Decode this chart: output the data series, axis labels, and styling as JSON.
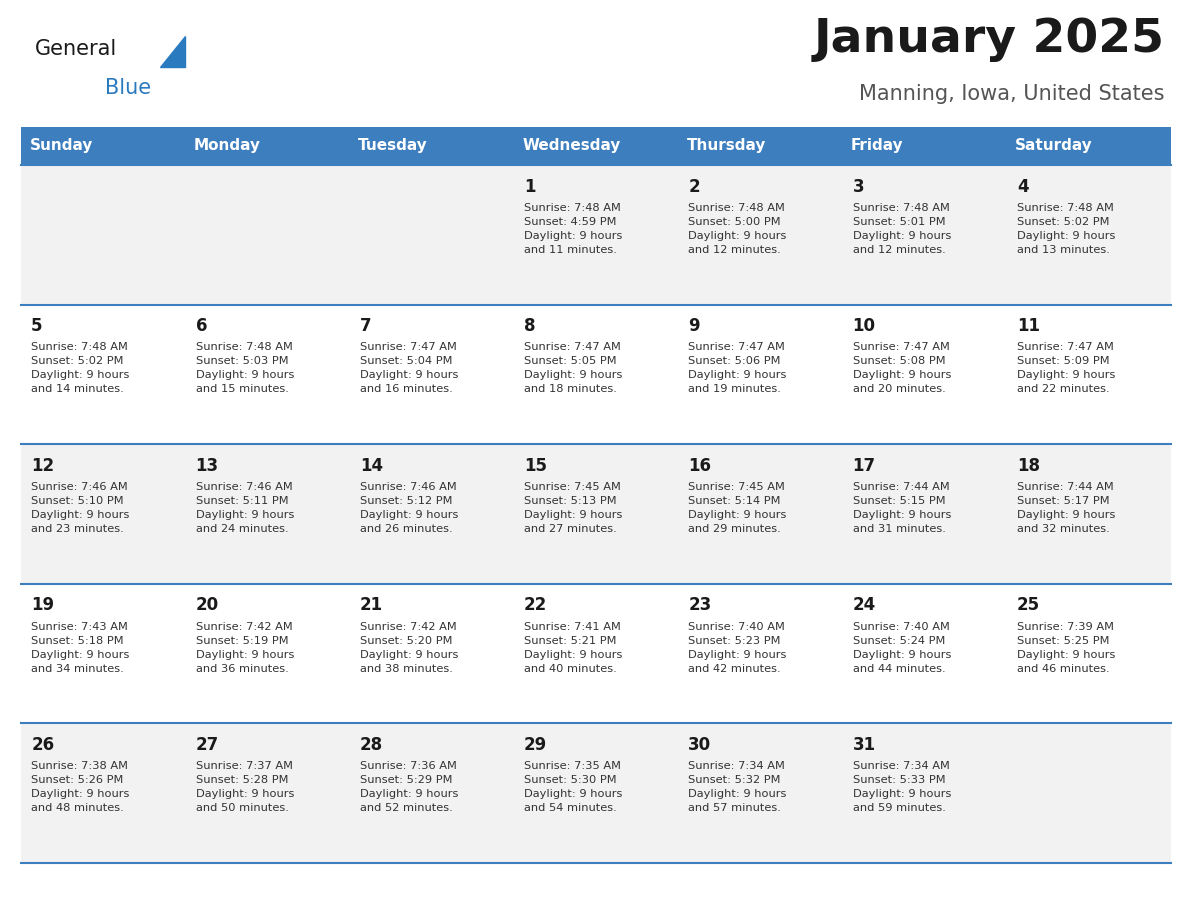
{
  "title": "January 2025",
  "subtitle": "Manning, Iowa, United States",
  "header_bg": "#3d7ebf",
  "header_text_color": "#ffffff",
  "day_names": [
    "Sunday",
    "Monday",
    "Tuesday",
    "Wednesday",
    "Thursday",
    "Friday",
    "Saturday"
  ],
  "row_bg_odd": "#f2f2f2",
  "row_bg_even": "#ffffff",
  "border_color": "#3d7ebf",
  "day_number_color": "#1a1a1a",
  "cell_text_color": "#333333",
  "calendar": [
    [
      {
        "day": "",
        "sunrise": "",
        "sunset": "",
        "daylight": ""
      },
      {
        "day": "",
        "sunrise": "",
        "sunset": "",
        "daylight": ""
      },
      {
        "day": "",
        "sunrise": "",
        "sunset": "",
        "daylight": ""
      },
      {
        "day": "1",
        "sunrise": "7:48 AM",
        "sunset": "4:59 PM",
        "daylight": "9 hours\nand 11 minutes."
      },
      {
        "day": "2",
        "sunrise": "7:48 AM",
        "sunset": "5:00 PM",
        "daylight": "9 hours\nand 12 minutes."
      },
      {
        "day": "3",
        "sunrise": "7:48 AM",
        "sunset": "5:01 PM",
        "daylight": "9 hours\nand 12 minutes."
      },
      {
        "day": "4",
        "sunrise": "7:48 AM",
        "sunset": "5:02 PM",
        "daylight": "9 hours\nand 13 minutes."
      }
    ],
    [
      {
        "day": "5",
        "sunrise": "7:48 AM",
        "sunset": "5:02 PM",
        "daylight": "9 hours\nand 14 minutes."
      },
      {
        "day": "6",
        "sunrise": "7:48 AM",
        "sunset": "5:03 PM",
        "daylight": "9 hours\nand 15 minutes."
      },
      {
        "day": "7",
        "sunrise": "7:47 AM",
        "sunset": "5:04 PM",
        "daylight": "9 hours\nand 16 minutes."
      },
      {
        "day": "8",
        "sunrise": "7:47 AM",
        "sunset": "5:05 PM",
        "daylight": "9 hours\nand 18 minutes."
      },
      {
        "day": "9",
        "sunrise": "7:47 AM",
        "sunset": "5:06 PM",
        "daylight": "9 hours\nand 19 minutes."
      },
      {
        "day": "10",
        "sunrise": "7:47 AM",
        "sunset": "5:08 PM",
        "daylight": "9 hours\nand 20 minutes."
      },
      {
        "day": "11",
        "sunrise": "7:47 AM",
        "sunset": "5:09 PM",
        "daylight": "9 hours\nand 22 minutes."
      }
    ],
    [
      {
        "day": "12",
        "sunrise": "7:46 AM",
        "sunset": "5:10 PM",
        "daylight": "9 hours\nand 23 minutes."
      },
      {
        "day": "13",
        "sunrise": "7:46 AM",
        "sunset": "5:11 PM",
        "daylight": "9 hours\nand 24 minutes."
      },
      {
        "day": "14",
        "sunrise": "7:46 AM",
        "sunset": "5:12 PM",
        "daylight": "9 hours\nand 26 minutes."
      },
      {
        "day": "15",
        "sunrise": "7:45 AM",
        "sunset": "5:13 PM",
        "daylight": "9 hours\nand 27 minutes."
      },
      {
        "day": "16",
        "sunrise": "7:45 AM",
        "sunset": "5:14 PM",
        "daylight": "9 hours\nand 29 minutes."
      },
      {
        "day": "17",
        "sunrise": "7:44 AM",
        "sunset": "5:15 PM",
        "daylight": "9 hours\nand 31 minutes."
      },
      {
        "day": "18",
        "sunrise": "7:44 AM",
        "sunset": "5:17 PM",
        "daylight": "9 hours\nand 32 minutes."
      }
    ],
    [
      {
        "day": "19",
        "sunrise": "7:43 AM",
        "sunset": "5:18 PM",
        "daylight": "9 hours\nand 34 minutes."
      },
      {
        "day": "20",
        "sunrise": "7:42 AM",
        "sunset": "5:19 PM",
        "daylight": "9 hours\nand 36 minutes."
      },
      {
        "day": "21",
        "sunrise": "7:42 AM",
        "sunset": "5:20 PM",
        "daylight": "9 hours\nand 38 minutes."
      },
      {
        "day": "22",
        "sunrise": "7:41 AM",
        "sunset": "5:21 PM",
        "daylight": "9 hours\nand 40 minutes."
      },
      {
        "day": "23",
        "sunrise": "7:40 AM",
        "sunset": "5:23 PM",
        "daylight": "9 hours\nand 42 minutes."
      },
      {
        "day": "24",
        "sunrise": "7:40 AM",
        "sunset": "5:24 PM",
        "daylight": "9 hours\nand 44 minutes."
      },
      {
        "day": "25",
        "sunrise": "7:39 AM",
        "sunset": "5:25 PM",
        "daylight": "9 hours\nand 46 minutes."
      }
    ],
    [
      {
        "day": "26",
        "sunrise": "7:38 AM",
        "sunset": "5:26 PM",
        "daylight": "9 hours\nand 48 minutes."
      },
      {
        "day": "27",
        "sunrise": "7:37 AM",
        "sunset": "5:28 PM",
        "daylight": "9 hours\nand 50 minutes."
      },
      {
        "day": "28",
        "sunrise": "7:36 AM",
        "sunset": "5:29 PM",
        "daylight": "9 hours\nand 52 minutes."
      },
      {
        "day": "29",
        "sunrise": "7:35 AM",
        "sunset": "5:30 PM",
        "daylight": "9 hours\nand 54 minutes."
      },
      {
        "day": "30",
        "sunrise": "7:34 AM",
        "sunset": "5:32 PM",
        "daylight": "9 hours\nand 57 minutes."
      },
      {
        "day": "31",
        "sunrise": "7:34 AM",
        "sunset": "5:33 PM",
        "daylight": "9 hours\nand 59 minutes."
      },
      {
        "day": "",
        "sunrise": "",
        "sunset": "",
        "daylight": ""
      }
    ]
  ]
}
